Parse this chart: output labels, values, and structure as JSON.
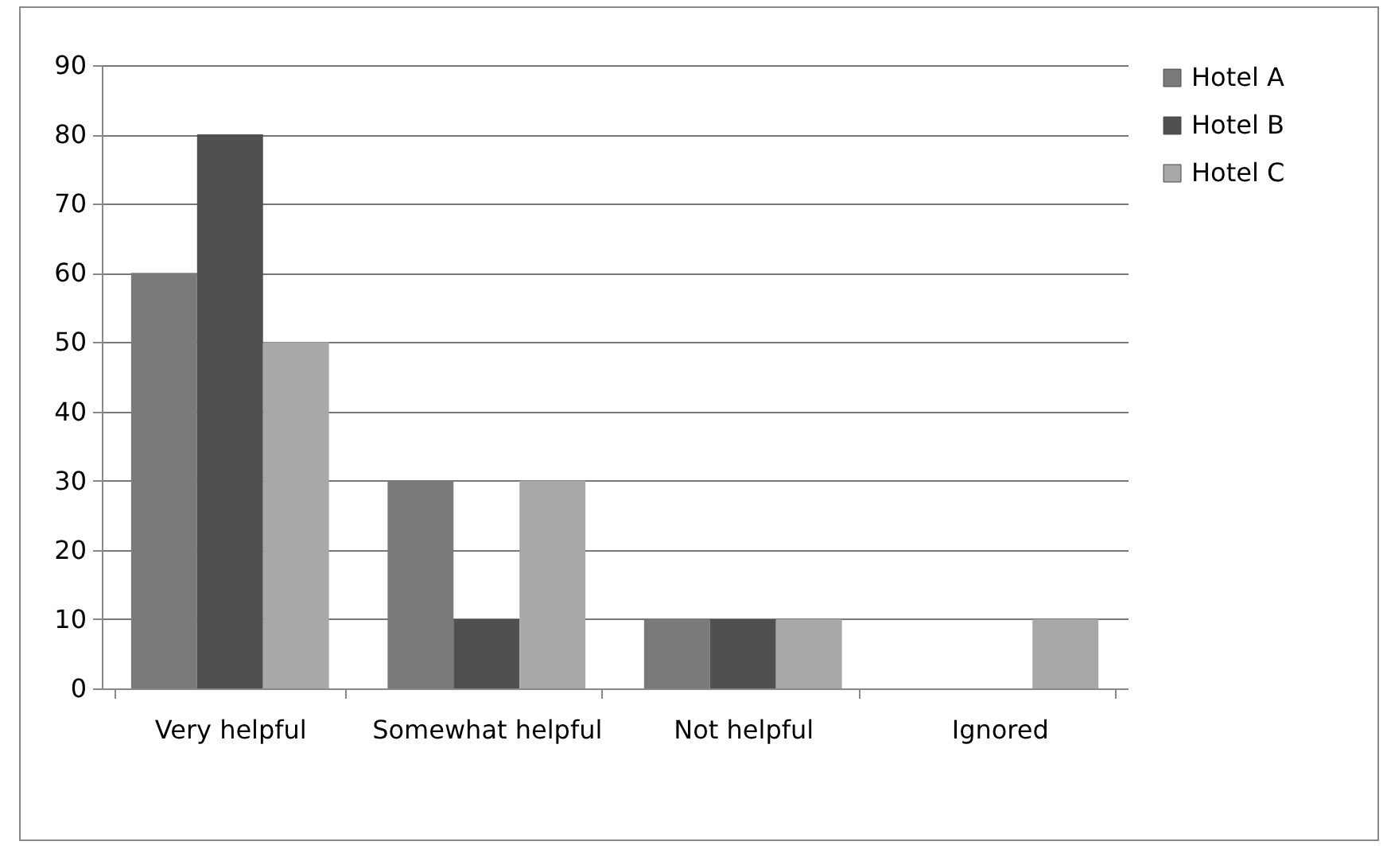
{
  "chart_data": {
    "type": "bar",
    "categories": [
      "Very helpful",
      "Somewhat helpful",
      "Not helpful",
      "Ignored"
    ],
    "series": [
      {
        "name": "Hotel A",
        "color": "#7a7a7a",
        "values": [
          60,
          30,
          10,
          0
        ]
      },
      {
        "name": "Hotel B",
        "color": "#505050",
        "values": [
          80,
          10,
          10,
          0
        ]
      },
      {
        "name": "Hotel C",
        "color": "#a8a8a8",
        "values": [
          50,
          30,
          10,
          10
        ]
      }
    ],
    "ylim": [
      0,
      90
    ],
    "yticks": [
      0,
      10,
      20,
      30,
      40,
      50,
      60,
      70,
      80,
      90
    ],
    "grid": "y",
    "legend": "right"
  }
}
